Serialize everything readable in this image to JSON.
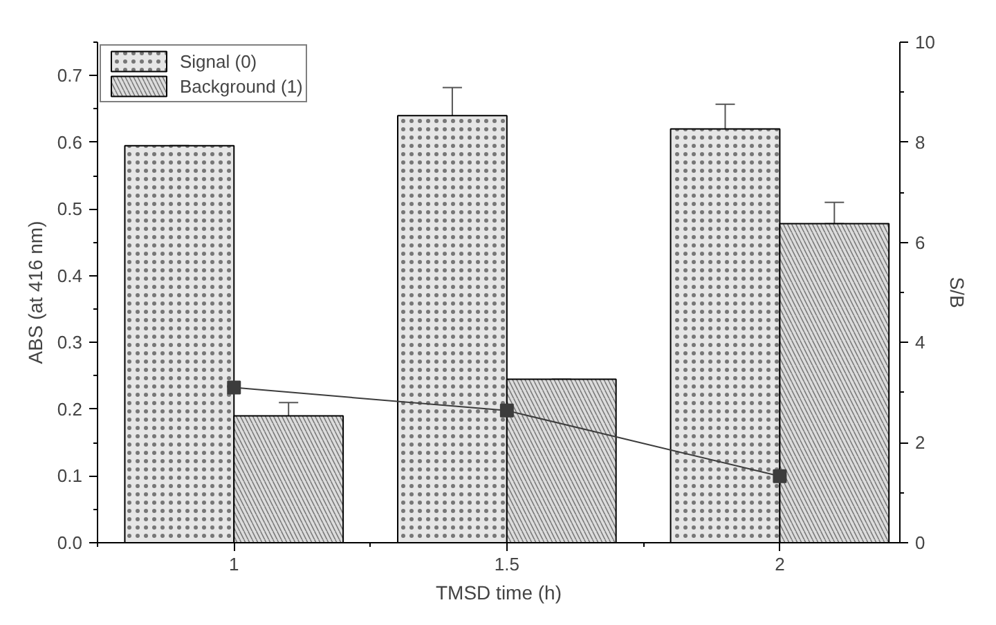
{
  "chart_data": {
    "type": "bar",
    "xlabel": "TMSD time (h)",
    "ylabel": "ABS (at 416 nm)",
    "y2label": "S/B",
    "x": [
      1,
      1.5,
      2
    ],
    "series": [
      {
        "name": "Signal (0)",
        "color": "#e6e6e6",
        "values": [
          0.595,
          0.64,
          0.62
        ],
        "errors": [
          [
            0.56,
            0.595
          ],
          [
            0.597,
            0.682
          ],
          [
            0.59,
            0.657
          ]
        ]
      },
      {
        "name": "Background (1)",
        "color": "#dcdcdc",
        "values": [
          0.19,
          0.245,
          0.478
        ],
        "errors": [
          [
            0.17,
            0.21
          ],
          [
            0.205,
            0.245
          ],
          [
            0.478,
            0.51
          ]
        ]
      },
      {
        "type": "line",
        "axis": "y2",
        "color": "#3c3c3c",
        "marker": "square",
        "values": [
          3.1,
          2.64,
          1.33
        ]
      }
    ],
    "xlim": [
      0.75,
      2.22
    ],
    "xticks": [
      1,
      1.5,
      2
    ],
    "ylim": [
      0,
      0.75
    ],
    "yticks": [
      {
        "value": 0,
        "label": "0.0"
      },
      0.1,
      0.2,
      0.3,
      0.4,
      0.5,
      0.6,
      0.7
    ],
    "y2lim": [
      0,
      10
    ],
    "y2ticks": [
      0,
      2,
      4,
      6,
      8,
      10
    ],
    "grid": false,
    "legend": "top left"
  }
}
